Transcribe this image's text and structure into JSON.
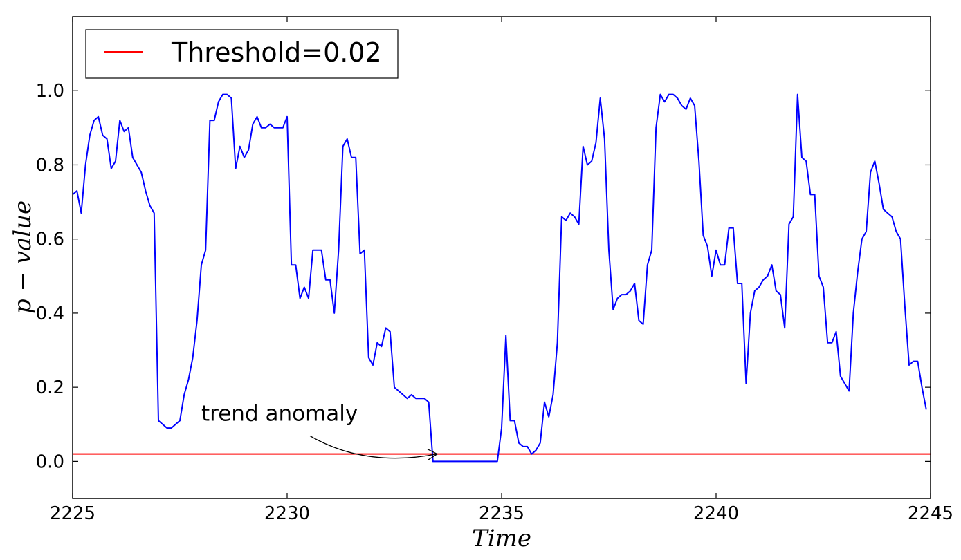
{
  "chart_data": {
    "type": "line",
    "xlabel": "Time",
    "ylabel": "p − value",
    "xlim": [
      2225,
      2245
    ],
    "ylim": [
      -0.1,
      1.2
    ],
    "xticks": [
      2225,
      2230,
      2235,
      2240,
      2245
    ],
    "xtick_labels": [
      "2225",
      "2230",
      "2235",
      "2240",
      "2245"
    ],
    "yticks": [
      0.0,
      0.2,
      0.4,
      0.6,
      0.8,
      1.0
    ],
    "ytick_labels": [
      "0.0",
      "0.2",
      "0.4",
      "0.6",
      "0.8",
      "1.0"
    ],
    "grid": false,
    "legend": {
      "placement": "top-left",
      "entries": [
        {
          "label": "Threshold=0.02",
          "color": "#ff0000"
        }
      ]
    },
    "threshold": {
      "name": "Threshold=0.02",
      "value": 0.02,
      "color": "#ff0000"
    },
    "series": [
      {
        "color": "#0000ff",
        "x": [
          2225.0,
          2225.1,
          2225.2,
          2225.3,
          2225.4,
          2225.5,
          2225.6,
          2225.7,
          2225.8,
          2225.9,
          2226.0,
          2226.1,
          2226.2,
          2226.3,
          2226.4,
          2226.5,
          2226.6,
          2226.7,
          2226.8,
          2226.9,
          2227.0,
          2227.1,
          2227.2,
          2227.3,
          2227.4,
          2227.5,
          2227.6,
          2227.7,
          2227.8,
          2227.9,
          2228.0,
          2228.1,
          2228.2,
          2228.3,
          2228.4,
          2228.5,
          2228.6,
          2228.7,
          2228.8,
          2228.9,
          2229.0,
          2229.1,
          2229.2,
          2229.3,
          2229.4,
          2229.5,
          2229.6,
          2229.7,
          2229.8,
          2229.9,
          2230.0,
          2230.1,
          2230.2,
          2230.3,
          2230.4,
          2230.5,
          2230.6,
          2230.7,
          2230.8,
          2230.9,
          2231.0,
          2231.1,
          2231.2,
          2231.3,
          2231.4,
          2231.5,
          2231.6,
          2231.7,
          2231.8,
          2231.9,
          2232.0,
          2232.1,
          2232.2,
          2232.3,
          2232.4,
          2232.5,
          2232.6,
          2232.7,
          2232.8,
          2232.9,
          2233.0,
          2233.1,
          2233.2,
          2233.3,
          2233.4,
          2233.5,
          2233.6,
          2233.7,
          2233.8,
          2233.9,
          2234.0,
          2234.1,
          2234.2,
          2234.3,
          2234.4,
          2234.5,
          2234.6,
          2234.7,
          2234.8,
          2234.9,
          2235.0,
          2235.1,
          2235.2,
          2235.3,
          2235.4,
          2235.5,
          2235.6,
          2235.7,
          2235.8,
          2235.9,
          2236.0,
          2236.1,
          2236.2,
          2236.3,
          2236.4,
          2236.5,
          2236.6,
          2236.7,
          2236.8,
          2236.9,
          2237.0,
          2237.1,
          2237.2,
          2237.3,
          2237.4,
          2237.5,
          2237.6,
          2237.7,
          2237.8,
          2237.9,
          2238.0,
          2238.1,
          2238.2,
          2238.3,
          2238.4,
          2238.5,
          2238.6,
          2238.7,
          2238.8,
          2238.9,
          2239.0,
          2239.1,
          2239.2,
          2239.3,
          2239.4,
          2239.5,
          2239.6,
          2239.7,
          2239.8,
          2239.9,
          2240.0,
          2240.1,
          2240.2,
          2240.3,
          2240.4,
          2240.5,
          2240.6,
          2240.7,
          2240.8,
          2240.9,
          2241.0,
          2241.1,
          2241.2,
          2241.3,
          2241.4,
          2241.5,
          2241.6,
          2241.7,
          2241.8,
          2241.9,
          2242.0,
          2242.1,
          2242.2,
          2242.3,
          2242.4,
          2242.5,
          2242.6,
          2242.7,
          2242.8,
          2242.9,
          2243.0,
          2243.1,
          2243.2,
          2243.3,
          2243.4,
          2243.5,
          2243.6,
          2243.7,
          2243.8,
          2243.9,
          2244.0,
          2244.1,
          2244.2,
          2244.3,
          2244.4,
          2244.5,
          2244.6,
          2244.7,
          2244.8,
          2244.9
        ],
        "y": [
          0.72,
          0.73,
          0.67,
          0.8,
          0.88,
          0.92,
          0.93,
          0.88,
          0.87,
          0.79,
          0.81,
          0.92,
          0.89,
          0.9,
          0.82,
          0.8,
          0.78,
          0.73,
          0.69,
          0.67,
          0.11,
          0.1,
          0.09,
          0.09,
          0.1,
          0.11,
          0.18,
          0.22,
          0.28,
          0.38,
          0.53,
          0.57,
          0.92,
          0.92,
          0.97,
          0.99,
          0.99,
          0.98,
          0.79,
          0.85,
          0.82,
          0.84,
          0.91,
          0.93,
          0.9,
          0.9,
          0.91,
          0.9,
          0.9,
          0.9,
          0.93,
          0.53,
          0.53,
          0.44,
          0.47,
          0.44,
          0.57,
          0.57,
          0.57,
          0.49,
          0.49,
          0.4,
          0.57,
          0.85,
          0.87,
          0.82,
          0.82,
          0.56,
          0.57,
          0.28,
          0.26,
          0.32,
          0.31,
          0.36,
          0.35,
          0.2,
          0.19,
          0.18,
          0.17,
          0.18,
          0.17,
          0.17,
          0.17,
          0.16,
          0.0,
          0.0,
          0.0,
          0.0,
          0.0,
          0.0,
          0.0,
          0.0,
          0.0,
          0.0,
          0.0,
          0.0,
          0.0,
          0.0,
          0.0,
          0.0,
          0.09,
          0.34,
          0.11,
          0.11,
          0.05,
          0.04,
          0.04,
          0.02,
          0.03,
          0.05,
          0.16,
          0.12,
          0.18,
          0.32,
          0.66,
          0.65,
          0.67,
          0.66,
          0.64,
          0.85,
          0.8,
          0.81,
          0.86,
          0.98,
          0.87,
          0.57,
          0.41,
          0.44,
          0.45,
          0.45,
          0.46,
          0.48,
          0.38,
          0.37,
          0.53,
          0.57,
          0.9,
          0.99,
          0.97,
          0.99,
          0.99,
          0.98,
          0.96,
          0.95,
          0.98,
          0.96,
          0.81,
          0.61,
          0.58,
          0.5,
          0.57,
          0.53,
          0.53,
          0.63,
          0.63,
          0.48,
          0.48,
          0.21,
          0.4,
          0.46,
          0.47,
          0.49,
          0.5,
          0.53,
          0.46,
          0.45,
          0.36,
          0.64,
          0.66,
          0.99,
          0.82,
          0.81,
          0.72,
          0.72,
          0.5,
          0.47,
          0.32,
          0.32,
          0.35,
          0.23,
          0.21,
          0.19,
          0.4,
          0.51,
          0.6,
          0.62,
          0.78,
          0.81,
          0.75,
          0.68,
          0.67,
          0.66,
          0.62,
          0.6,
          0.42,
          0.26,
          0.27,
          0.27,
          0.2,
          0.14
        ]
      }
    ],
    "annotation": {
      "text": "trend anomaly",
      "xy": [
        2233.5,
        0.02
      ],
      "xytext": [
        2228.0,
        0.11
      ]
    }
  }
}
